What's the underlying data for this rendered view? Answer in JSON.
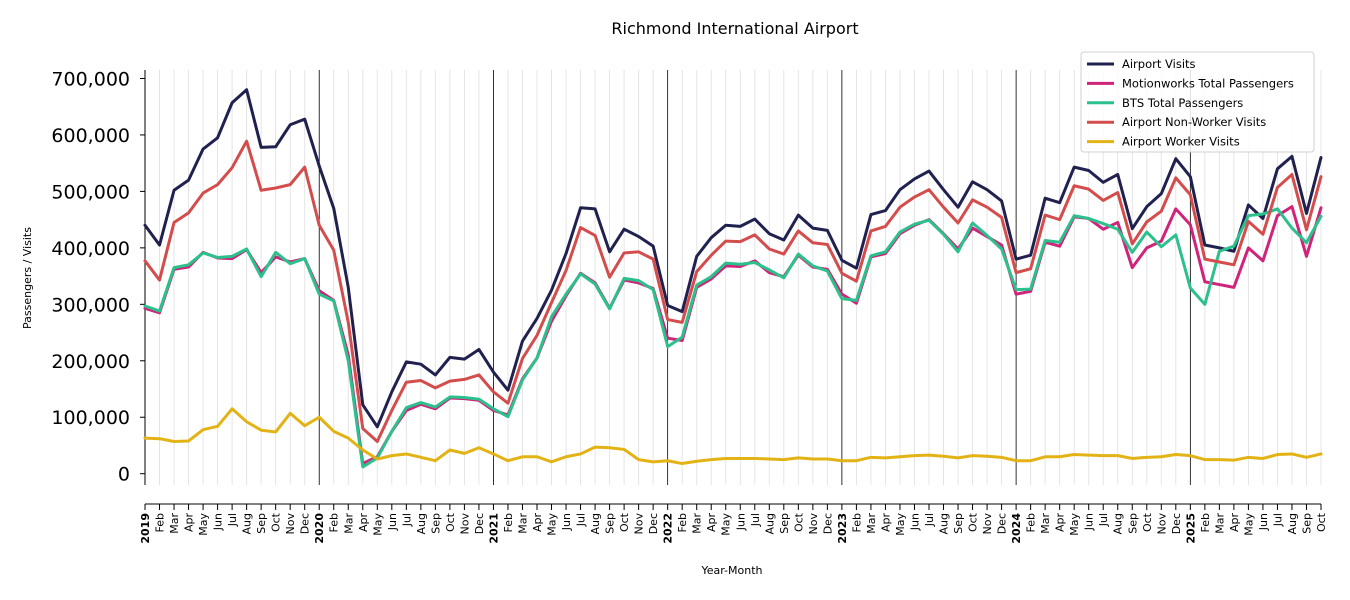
{
  "chart_data": {
    "type": "line",
    "title": "Richmond International Airport",
    "xlabel": "Year-Month",
    "ylabel": "Passengers / Visits",
    "ylim": [
      -20000,
      715000
    ],
    "yticks": [
      0,
      100000,
      200000,
      300000,
      400000,
      500000,
      600000,
      700000
    ],
    "ytick_labels": [
      "0",
      "100,000",
      "200,000",
      "300,000",
      "400,000",
      "500,000",
      "600,000",
      "700,000"
    ],
    "grid": "vertical monthly lines; dark lines at January of each year",
    "legend_position": "top-right",
    "x": [
      "2019-01",
      "2019-02",
      "2019-03",
      "2019-04",
      "2019-05",
      "2019-06",
      "2019-07",
      "2019-08",
      "2019-09",
      "2019-10",
      "2019-11",
      "2019-12",
      "2020-01",
      "2020-02",
      "2020-03",
      "2020-04",
      "2020-05",
      "2020-06",
      "2020-07",
      "2020-08",
      "2020-09",
      "2020-10",
      "2020-11",
      "2020-12",
      "2021-01",
      "2021-02",
      "2021-03",
      "2021-04",
      "2021-05",
      "2021-06",
      "2021-07",
      "2021-08",
      "2021-09",
      "2021-10",
      "2021-11",
      "2021-12",
      "2022-01",
      "2022-02",
      "2022-03",
      "2022-04",
      "2022-05",
      "2022-06",
      "2022-07",
      "2022-08",
      "2022-09",
      "2022-10",
      "2022-11",
      "2022-12",
      "2023-01",
      "2023-02",
      "2023-03",
      "2023-04",
      "2023-05",
      "2023-06",
      "2023-07",
      "2023-08",
      "2023-09",
      "2023-10",
      "2023-11",
      "2023-12",
      "2024-01",
      "2024-02",
      "2024-03",
      "2024-04",
      "2024-05",
      "2024-06",
      "2024-07",
      "2024-08",
      "2024-09",
      "2024-10",
      "2024-11",
      "2024-12",
      "2025-01",
      "2025-02",
      "2025-03",
      "2025-04",
      "2025-05",
      "2025-06",
      "2025-07",
      "2025-08",
      "2025-09",
      "2025-10"
    ],
    "x_tick_labels": [
      "2019",
      "Feb",
      "Mar",
      "Apr",
      "May",
      "Jun",
      "Jul",
      "Aug",
      "Sep",
      "Oct",
      "Nov",
      "Dec",
      "2020",
      "Feb",
      "Mar",
      "Apr",
      "May",
      "Jun",
      "Jul",
      "Aug",
      "Sep",
      "Oct",
      "Nov",
      "Dec",
      "2021",
      "Feb",
      "Mar",
      "Apr",
      "May",
      "Jun",
      "Jul",
      "Aug",
      "Sep",
      "Oct",
      "Nov",
      "Dec",
      "2022",
      "Feb",
      "Mar",
      "Apr",
      "May",
      "Jun",
      "Jul",
      "Aug",
      "Sep",
      "Oct",
      "Nov",
      "Dec",
      "2023",
      "Feb",
      "Mar",
      "Apr",
      "May",
      "Jun",
      "Jul",
      "Aug",
      "Sep",
      "Oct",
      "Nov",
      "Dec",
      "2024",
      "Feb",
      "Mar",
      "Apr",
      "May",
      "Jun",
      "Jul",
      "Aug",
      "Sep",
      "Oct",
      "Nov",
      "Dec",
      "2025",
      "Feb",
      "Mar",
      "Apr",
      "May",
      "Jun",
      "Jul",
      "Aug",
      "Sep",
      "Oct"
    ],
    "series": [
      {
        "name": "Airport Visits",
        "color": "#20214f",
        "values": [
          440000,
          405000,
          502000,
          520000,
          575000,
          595000,
          657000,
          680000,
          578000,
          579000,
          618000,
          628000,
          545000,
          470000,
          330000,
          122000,
          83000,
          145000,
          198000,
          194000,
          175000,
          206000,
          203000,
          220000,
          180000,
          148000,
          235000,
          275000,
          325000,
          390000,
          471000,
          469000,
          393000,
          433000,
          420000,
          403000,
          298000,
          287000,
          385000,
          418000,
          440000,
          438000,
          451000,
          425000,
          414000,
          458000,
          435000,
          431000,
          378000,
          364000,
          459000,
          466000,
          503000,
          522000,
          536000,
          503000,
          472000,
          517000,
          503000,
          483000,
          380000,
          387000,
          488000,
          480000,
          543000,
          537000,
          516000,
          530000,
          434000,
          473000,
          496000,
          558000,
          526000,
          405000,
          400000,
          394000,
          476000,
          452000,
          540000,
          562000,
          461000,
          560000
        ]
      },
      {
        "name": "Motionworks Total Passengers",
        "color": "#d0237a",
        "values": [
          293000,
          285000,
          362000,
          366000,
          392000,
          382000,
          381000,
          397000,
          356000,
          384000,
          375000,
          381000,
          324000,
          307000,
          210000,
          18000,
          30000,
          75000,
          112000,
          123000,
          115000,
          134000,
          133000,
          130000,
          112000,
          104000,
          168000,
          205000,
          270000,
          315000,
          355000,
          338000,
          293000,
          343000,
          338000,
          328000,
          240000,
          236000,
          330000,
          345000,
          368000,
          367000,
          377000,
          356000,
          349000,
          387000,
          366000,
          362000,
          318000,
          302000,
          384000,
          390000,
          425000,
          440000,
          450000,
          425000,
          398000,
          435000,
          420000,
          405000,
          318000,
          323000,
          410000,
          403000,
          455000,
          452000,
          433000,
          445000,
          365000,
          400000,
          412000,
          469000,
          441000,
          340000,
          335000,
          330000,
          400000,
          377000,
          457000,
          473000,
          385000,
          471000
        ]
      },
      {
        "name": "BTS Total Passengers",
        "color": "#2cc08c",
        "values": [
          297000,
          288000,
          365000,
          370000,
          391000,
          383000,
          385000,
          398000,
          349000,
          392000,
          372000,
          381000,
          318000,
          306000,
          200000,
          12000,
          28000,
          75000,
          117000,
          126000,
          118000,
          136000,
          135000,
          132000,
          115000,
          101000,
          166000,
          205000,
          278000,
          318000,
          354000,
          336000,
          292000,
          346000,
          342000,
          326000,
          225000,
          242000,
          334000,
          349000,
          373000,
          371000,
          374000,
          361000,
          347000,
          389000,
          368000,
          359000,
          310000,
          307000,
          386000,
          393000,
          428000,
          442000,
          449000,
          424000,
          393000,
          444000,
          422000,
          398000,
          326000,
          327000,
          413000,
          410000,
          457000,
          452000,
          443000,
          433000,
          392000,
          428000,
          402000,
          423000,
          329000,
          300000,
          394000,
          403000,
          457000,
          460000,
          469000,
          435000,
          409000,
          456000
        ]
      },
      {
        "name": "Airport Non-Worker Visits",
        "color": "#d44d4d",
        "values": [
          377000,
          343000,
          445000,
          462000,
          497000,
          512000,
          542000,
          589000,
          502000,
          506000,
          512000,
          543000,
          440000,
          396000,
          268000,
          80000,
          57000,
          112000,
          162000,
          165000,
          152000,
          164000,
          167000,
          175000,
          145000,
          125000,
          204000,
          245000,
          303000,
          360000,
          436000,
          422000,
          348000,
          391000,
          393000,
          380000,
          273000,
          268000,
          358000,
          387000,
          412000,
          411000,
          423000,
          398000,
          389000,
          430000,
          409000,
          406000,
          355000,
          341000,
          430000,
          438000,
          472000,
          490000,
          503000,
          472000,
          444000,
          485000,
          472000,
          454000,
          356000,
          363000,
          458000,
          450000,
          510000,
          504000,
          484000,
          498000,
          407000,
          446000,
          465000,
          524000,
          494000,
          380000,
          375000,
          370000,
          447000,
          424000,
          507000,
          530000,
          432000,
          526000
        ]
      },
      {
        "name": "Airport Worker Visits",
        "color": "#e3b315",
        "values": [
          63000,
          62000,
          57000,
          58000,
          78000,
          84000,
          115000,
          92000,
          77000,
          74000,
          107000,
          85000,
          100000,
          75000,
          63000,
          42000,
          26000,
          32000,
          35000,
          29000,
          23000,
          42000,
          36000,
          46000,
          35000,
          23000,
          30000,
          30000,
          21000,
          30000,
          35000,
          47000,
          46000,
          43000,
          25000,
          21000,
          23000,
          18000,
          22000,
          25000,
          27000,
          27000,
          27000,
          26000,
          25000,
          28000,
          26000,
          26000,
          23000,
          23000,
          29000,
          28000,
          30000,
          32000,
          33000,
          31000,
          28000,
          32000,
          31000,
          29000,
          23000,
          23000,
          30000,
          30000,
          34000,
          33000,
          32000,
          32000,
          27000,
          29000,
          30000,
          34000,
          32000,
          25000,
          25000,
          24000,
          29000,
          27000,
          34000,
          35000,
          29000,
          35000
        ]
      }
    ]
  }
}
